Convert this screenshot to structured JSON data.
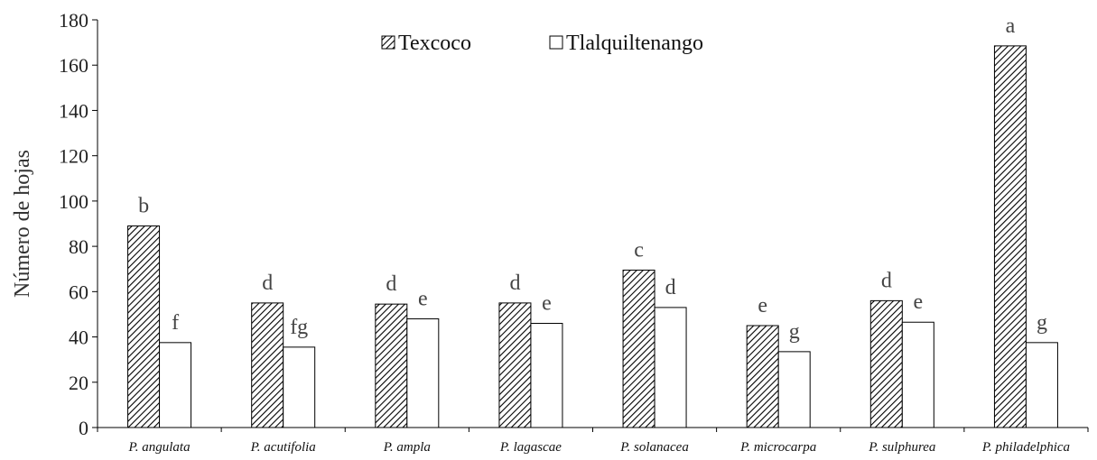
{
  "chart_data": {
    "type": "bar",
    "ylabel": "Número de hojas",
    "ylim": [
      0,
      180
    ],
    "yticks": [
      0,
      20,
      40,
      60,
      80,
      100,
      120,
      140,
      160,
      180
    ],
    "categories": [
      "P. angulata",
      "P. acutifolia",
      "P. ampla",
      "P. lagascae",
      "P. solanacea",
      "P. microcarpa",
      "P. sulphurea",
      "P. philadelphica"
    ],
    "series": [
      {
        "name": "Texcoco",
        "values": [
          89,
          55,
          54.5,
          55,
          69.5,
          45,
          56,
          168.5
        ],
        "labels": [
          "b",
          "d",
          "d",
          "d",
          "c",
          "e",
          "d",
          "a"
        ],
        "fill": "hatched"
      },
      {
        "name": "Tlalquiltenango",
        "values": [
          37.5,
          35.5,
          48,
          46,
          53,
          33.5,
          46.5,
          37.5
        ],
        "labels": [
          "f",
          "fg",
          "e",
          "e",
          "d",
          "g",
          "e",
          "g"
        ],
        "fill": "white"
      }
    ],
    "legend": "top-center",
    "grid": false
  }
}
